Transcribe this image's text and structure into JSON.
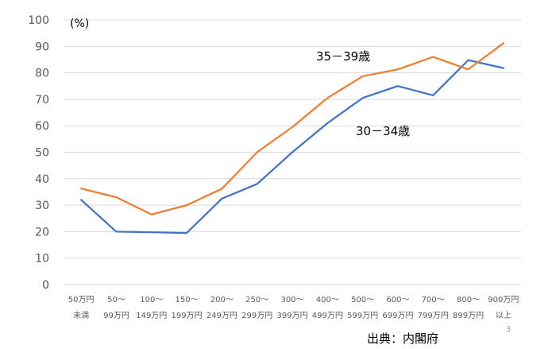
{
  "chart_data": {
    "type": "line",
    "y_unit_label": "(%)",
    "ylim": [
      0,
      100
    ],
    "y_ticks": [
      0,
      10,
      20,
      30,
      40,
      50,
      60,
      70,
      80,
      90,
      100
    ],
    "grid": true,
    "categories": [
      [
        "50万円",
        "未満"
      ],
      [
        "50～",
        "99万円"
      ],
      [
        "100～",
        "149万円"
      ],
      [
        "150～",
        "199万円"
      ],
      [
        "200～",
        "249万円"
      ],
      [
        "250～",
        "299万円"
      ],
      [
        "300～",
        "399万円"
      ],
      [
        "400～",
        "499万円"
      ],
      [
        "500～",
        "599万円"
      ],
      [
        "600～",
        "699万円"
      ],
      [
        "700～",
        "799万円"
      ],
      [
        "800～",
        "899万円"
      ],
      [
        "900万円",
        "以上"
      ]
    ],
    "series": [
      {
        "name": "30－34歳",
        "color": "#4472C4",
        "values": [
          32,
          20,
          19.8,
          19.5,
          32.5,
          38,
          50,
          61,
          70.5,
          75,
          71.5,
          84.8,
          81.8
        ]
      },
      {
        "name": "35－39歳",
        "color": "#ED7D31",
        "values": [
          36.3,
          33,
          26.5,
          30,
          36.2,
          50,
          59.5,
          70.5,
          78.7,
          81.3,
          86,
          81.3,
          91.2
        ]
      }
    ]
  },
  "source_note": "出典：内閣府",
  "page_number": "3"
}
